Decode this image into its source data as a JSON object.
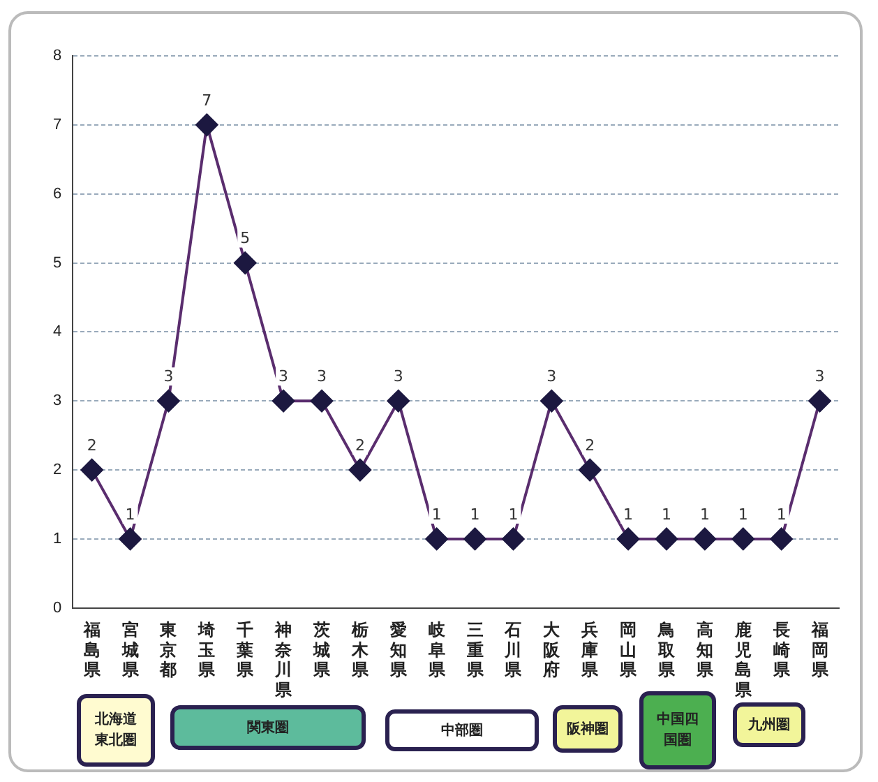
{
  "chart_data": {
    "type": "line",
    "categories": [
      "福島県",
      "宮城県",
      "東京都",
      "埼玉県",
      "千葉県",
      "神奈川県",
      "茨城県",
      "栃木県",
      "愛知県",
      "岐阜県",
      "三重県",
      "石川県",
      "大阪府",
      "兵庫県",
      "岡山県",
      "鳥取県",
      "高知県",
      "鹿児島県",
      "長崎県",
      "福岡県"
    ],
    "values": [
      2,
      1,
      3,
      7,
      5,
      3,
      3,
      2,
      3,
      1,
      1,
      1,
      3,
      2,
      1,
      1,
      1,
      1,
      1,
      3
    ],
    "color": "#5a2d6e",
    "ylim": [
      0,
      8
    ],
    "yticks": [
      0,
      1,
      2,
      3,
      4,
      5,
      6,
      7,
      8
    ],
    "grid": "y",
    "marker": "diamond",
    "data_labels": true,
    "legend": false,
    "annotations": [
      "北海道東北圏",
      "関東圏",
      "中部圏",
      "阪神圏",
      "中国四国圏",
      "九州圏"
    ]
  }
}
